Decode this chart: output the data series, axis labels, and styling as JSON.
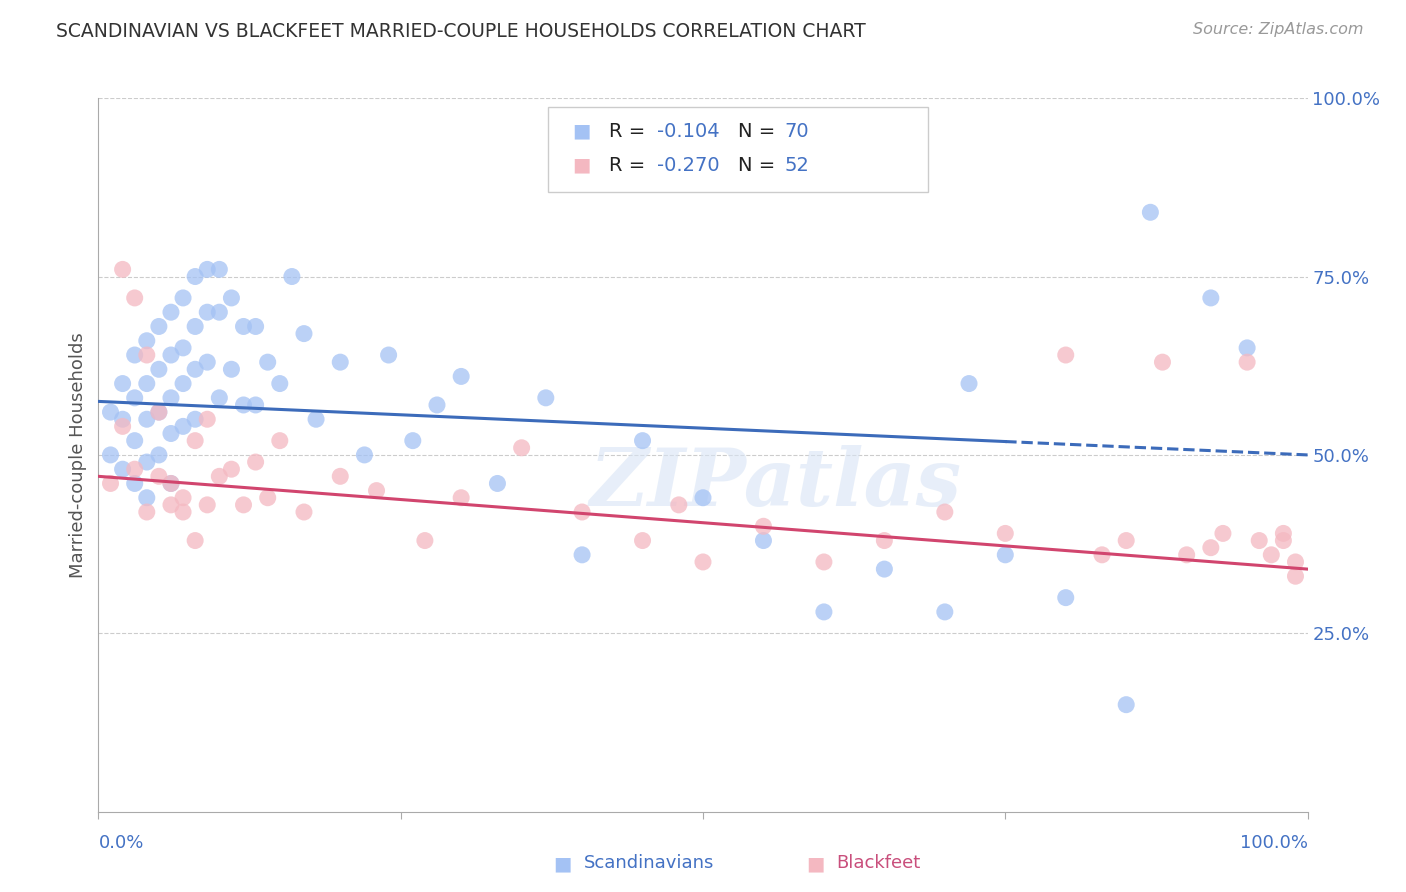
{
  "title": "SCANDINAVIAN VS BLACKFEET MARRIED-COUPLE HOUSEHOLDS CORRELATION CHART",
  "source": "Source: ZipAtlas.com",
  "ylabel": "Married-couple Households",
  "xlim": [
    0.0,
    1.0
  ],
  "ylim": [
    0.0,
    1.0
  ],
  "yticks": [
    0.25,
    0.5,
    0.75,
    1.0
  ],
  "ytick_labels": [
    "25.0%",
    "50.0%",
    "75.0%",
    "100.0%"
  ],
  "blue_color": "#a4c2f4",
  "pink_color": "#f4b8c1",
  "blue_line_color": "#3c6bba",
  "pink_line_color": "#d1456e",
  "R_blue": -0.104,
  "N_blue": 70,
  "R_pink": -0.27,
  "N_pink": 52,
  "watermark": "ZIPatlas",
  "legend_label_blue": "Scandinavians",
  "legend_label_pink": "Blackfeet",
  "blue_line_intercept": 0.575,
  "blue_line_slope": -0.075,
  "pink_line_intercept": 0.47,
  "pink_line_slope": -0.13,
  "blue_scatter_x": [
    0.01,
    0.01,
    0.02,
    0.02,
    0.02,
    0.03,
    0.03,
    0.03,
    0.03,
    0.04,
    0.04,
    0.04,
    0.04,
    0.04,
    0.05,
    0.05,
    0.05,
    0.05,
    0.06,
    0.06,
    0.06,
    0.06,
    0.06,
    0.07,
    0.07,
    0.07,
    0.07,
    0.08,
    0.08,
    0.08,
    0.08,
    0.09,
    0.09,
    0.09,
    0.1,
    0.1,
    0.1,
    0.11,
    0.11,
    0.12,
    0.12,
    0.13,
    0.13,
    0.14,
    0.15,
    0.16,
    0.17,
    0.18,
    0.2,
    0.22,
    0.24,
    0.26,
    0.28,
    0.3,
    0.33,
    0.37,
    0.4,
    0.45,
    0.5,
    0.55,
    0.6,
    0.65,
    0.7,
    0.72,
    0.75,
    0.8,
    0.85,
    0.87,
    0.92,
    0.95
  ],
  "blue_scatter_y": [
    0.56,
    0.5,
    0.6,
    0.55,
    0.48,
    0.64,
    0.58,
    0.52,
    0.46,
    0.66,
    0.6,
    0.55,
    0.49,
    0.44,
    0.68,
    0.62,
    0.56,
    0.5,
    0.7,
    0.64,
    0.58,
    0.53,
    0.46,
    0.72,
    0.65,
    0.6,
    0.54,
    0.75,
    0.68,
    0.62,
    0.55,
    0.76,
    0.7,
    0.63,
    0.76,
    0.7,
    0.58,
    0.72,
    0.62,
    0.68,
    0.57,
    0.68,
    0.57,
    0.63,
    0.6,
    0.75,
    0.67,
    0.55,
    0.63,
    0.5,
    0.64,
    0.52,
    0.57,
    0.61,
    0.46,
    0.58,
    0.36,
    0.52,
    0.44,
    0.38,
    0.28,
    0.34,
    0.28,
    0.6,
    0.36,
    0.3,
    0.15,
    0.84,
    0.72,
    0.65
  ],
  "pink_scatter_x": [
    0.01,
    0.02,
    0.02,
    0.03,
    0.03,
    0.04,
    0.04,
    0.05,
    0.05,
    0.06,
    0.06,
    0.07,
    0.07,
    0.08,
    0.08,
    0.09,
    0.09,
    0.1,
    0.11,
    0.12,
    0.13,
    0.14,
    0.15,
    0.17,
    0.2,
    0.23,
    0.27,
    0.3,
    0.35,
    0.4,
    0.45,
    0.48,
    0.5,
    0.55,
    0.6,
    0.65,
    0.7,
    0.75,
    0.8,
    0.83,
    0.85,
    0.88,
    0.9,
    0.92,
    0.93,
    0.95,
    0.96,
    0.97,
    0.98,
    0.98,
    0.99,
    0.99
  ],
  "pink_scatter_y": [
    0.46,
    0.76,
    0.54,
    0.72,
    0.48,
    0.64,
    0.42,
    0.56,
    0.47,
    0.46,
    0.43,
    0.44,
    0.42,
    0.52,
    0.38,
    0.43,
    0.55,
    0.47,
    0.48,
    0.43,
    0.49,
    0.44,
    0.52,
    0.42,
    0.47,
    0.45,
    0.38,
    0.44,
    0.51,
    0.42,
    0.38,
    0.43,
    0.35,
    0.4,
    0.35,
    0.38,
    0.42,
    0.39,
    0.64,
    0.36,
    0.38,
    0.63,
    0.36,
    0.37,
    0.39,
    0.63,
    0.38,
    0.36,
    0.39,
    0.38,
    0.35,
    0.33
  ]
}
